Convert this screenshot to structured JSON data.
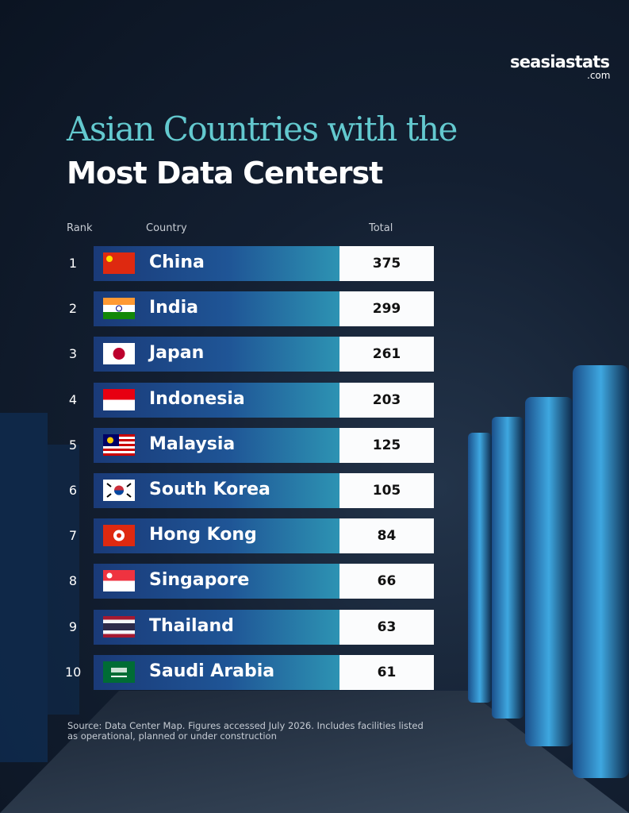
{
  "brand": {
    "name": "seasiastats",
    "suffix": ".com"
  },
  "title": {
    "line1": "Asian Countries with the",
    "line2": "Most Data Centerst"
  },
  "table": {
    "headers": [
      "Rank",
      "Country",
      "Total"
    ],
    "rows": [
      [
        1,
        "China",
        375
      ],
      [
        2,
        "India",
        299
      ],
      [
        3,
        "Japan",
        261
      ],
      [
        4,
        "Indonesia",
        203
      ],
      [
        5,
        "Malaysia",
        125
      ],
      [
        6,
        "South Korea",
        105
      ],
      [
        7,
        "Hong Kong",
        84
      ],
      [
        8,
        "Singapore",
        66
      ],
      [
        9,
        "Thailand",
        63
      ],
      [
        10,
        "Saudi Arabia",
        61
      ]
    ]
  },
  "footnote": "Source: Data Center Map. Figures accessed July 2026. Includes facilities listed as operational, planned or under construction"
}
